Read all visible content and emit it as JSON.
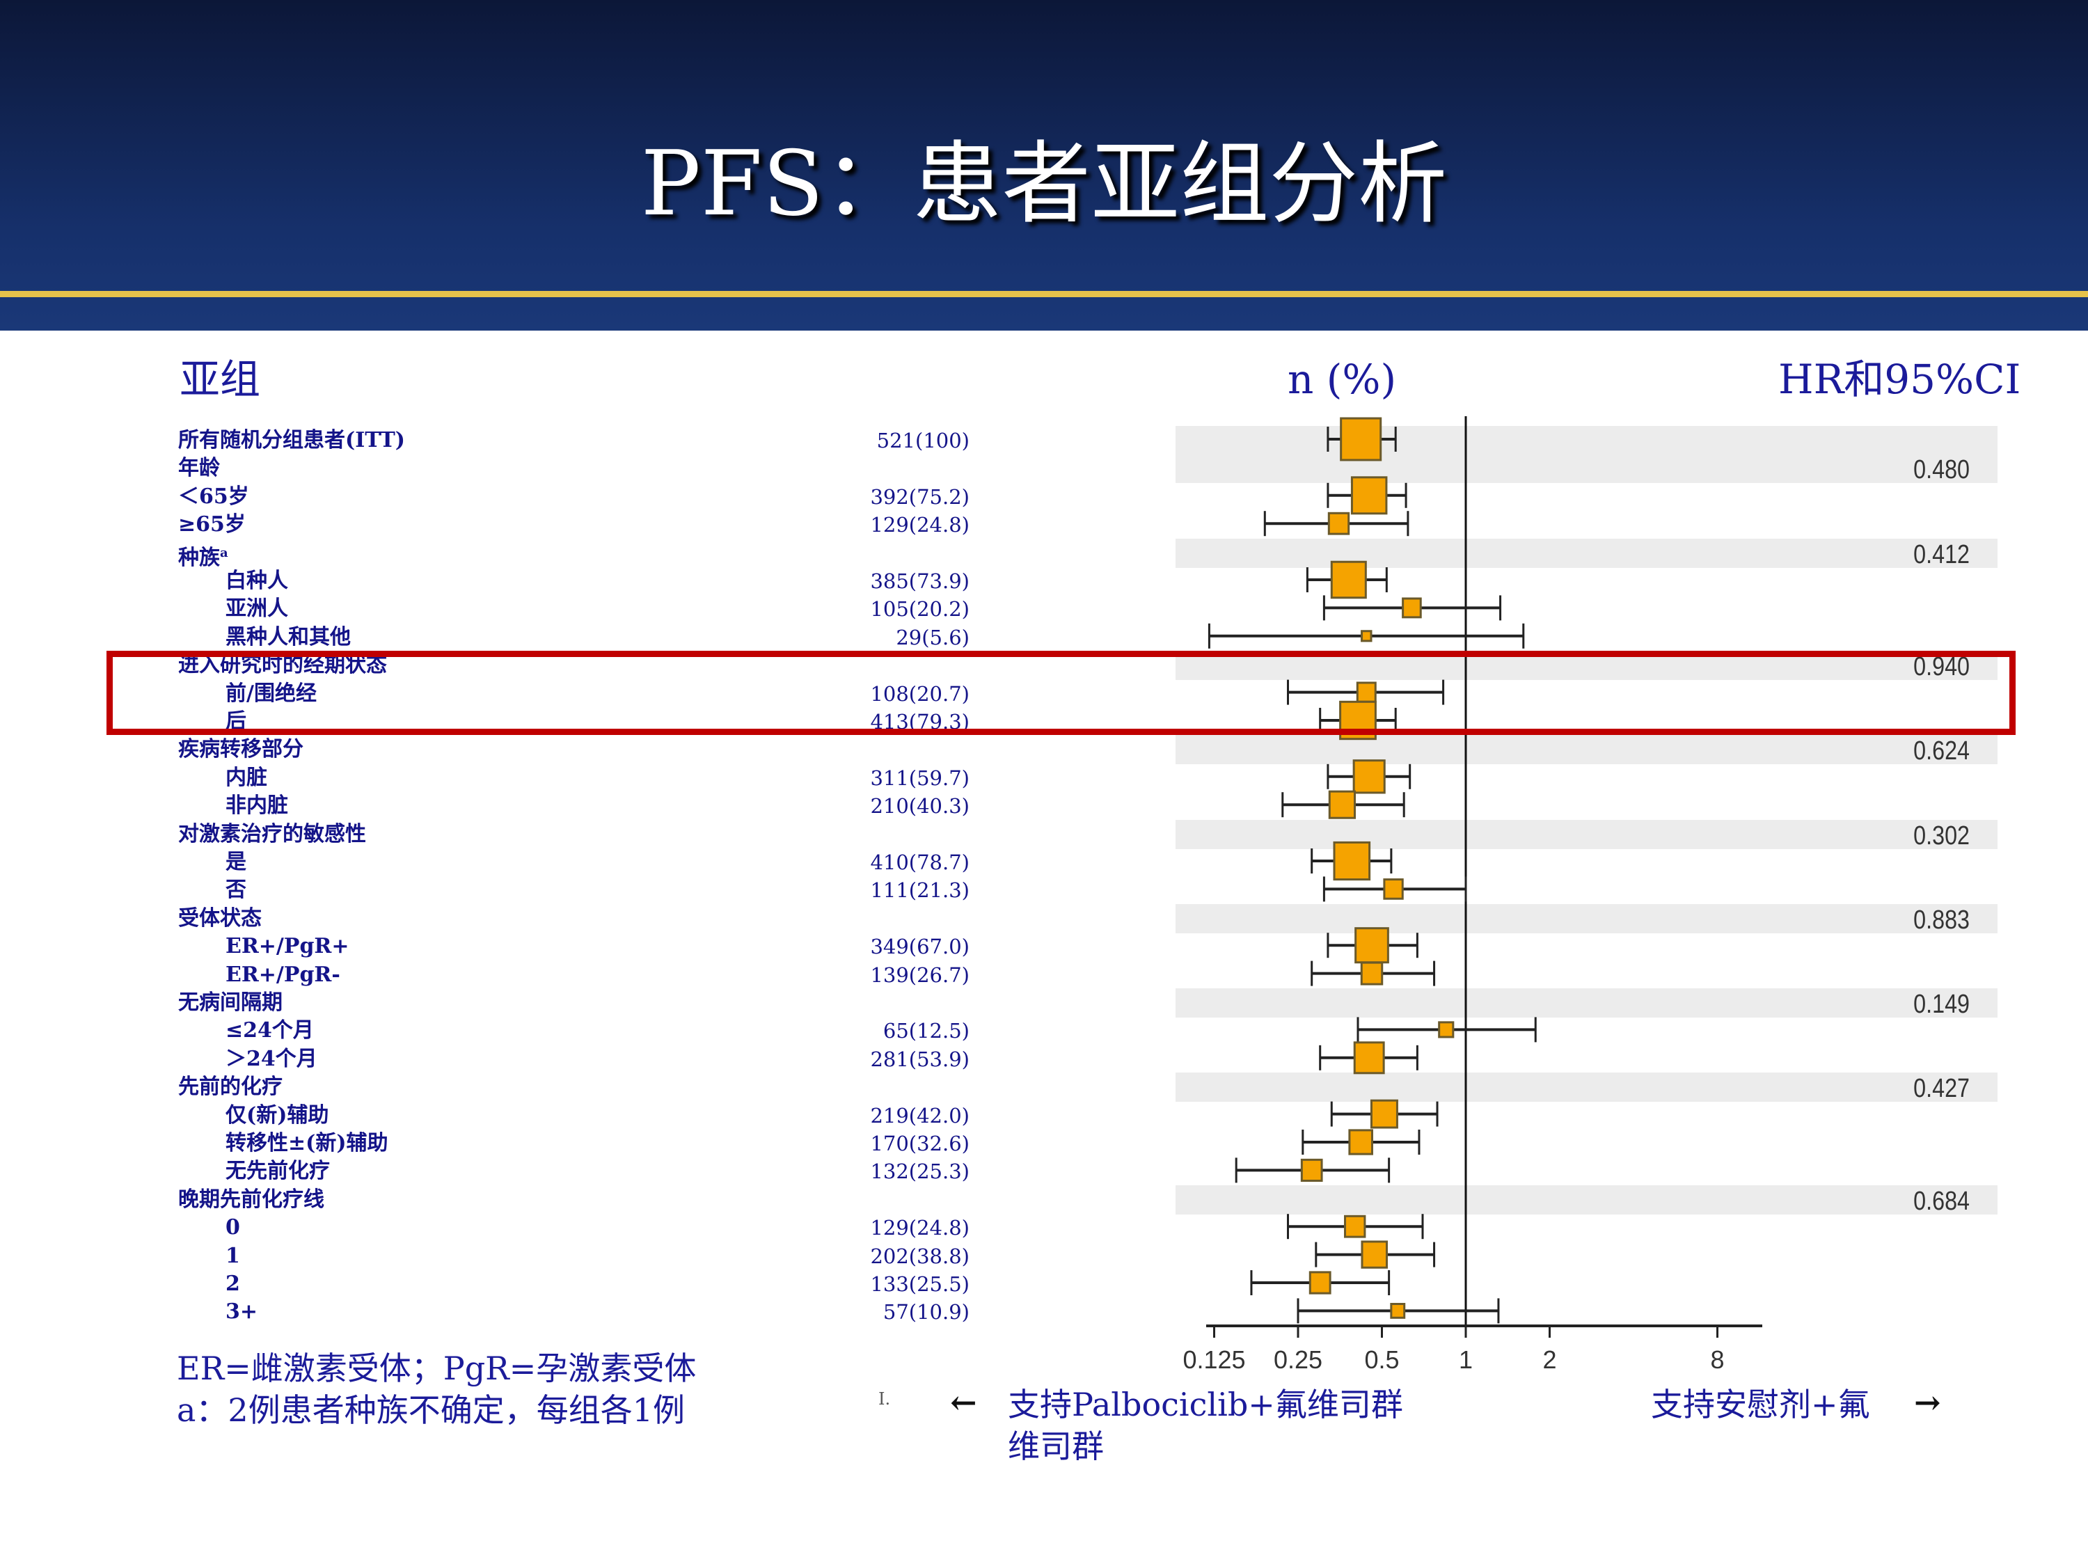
{
  "title": "PFS：患者亚组分析",
  "headers": {
    "subgroup": "亚组",
    "n": "n (%)",
    "hr": "HR和95%CI"
  },
  "colors": {
    "header_bg": "#16306b",
    "gold_line": "#e6c24a",
    "box_fill": "#f5a300",
    "highlight": "#c00000",
    "text": "#141489"
  },
  "rows": [
    {
      "label": "所有随机分组患者(ITT)",
      "indent": 0,
      "n": "521(100)"
    },
    {
      "label": "年龄",
      "indent": 0,
      "p": "0.480"
    },
    {
      "label": "＜65岁",
      "indent": 0,
      "n": "392(75.2)"
    },
    {
      "label": "≥65岁",
      "indent": 0,
      "n": "129(24.8)"
    },
    {
      "label": "种族",
      "sup": "a",
      "indent": 0,
      "p": "0.412"
    },
    {
      "label": "白种人",
      "indent": 1,
      "n": "385(73.9)"
    },
    {
      "label": "亚洲人",
      "indent": 1,
      "n": "105(20.2)"
    },
    {
      "label": "黑种人和其他",
      "indent": 1,
      "n": "29(5.6)"
    },
    {
      "label": "进入研究时的经期状态",
      "indent": 0,
      "p": "0.940"
    },
    {
      "label": "前/围绝经",
      "indent": 1,
      "n": "108(20.7)"
    },
    {
      "label": "后",
      "indent": 1,
      "n": "413(79.3)"
    },
    {
      "label": "疾病转移部分",
      "indent": 0,
      "p": "0.624"
    },
    {
      "label": "内脏",
      "indent": 1,
      "n": "311(59.7)"
    },
    {
      "label": "非内脏",
      "indent": 1,
      "n": "210(40.3)"
    },
    {
      "label": "对激素治疗的敏感性",
      "indent": 0,
      "p": "0.302"
    },
    {
      "label": "是",
      "indent": 1,
      "n": "410(78.7)"
    },
    {
      "label": "否",
      "indent": 1,
      "n": "111(21.3)"
    },
    {
      "label": "受体状态",
      "indent": 0,
      "p": "0.883"
    },
    {
      "label": "ER+/PgR+",
      "indent": 1,
      "n": "349(67.0)"
    },
    {
      "label": "ER+/PgR-",
      "indent": 1,
      "n": "139(26.7)"
    },
    {
      "label": "无病间隔期",
      "indent": 0,
      "p": "0.149"
    },
    {
      "label": "≤24个月",
      "indent": 1,
      "n": "65(12.5)"
    },
    {
      "label": "＞24个月",
      "indent": 1,
      "n": "281(53.9)"
    },
    {
      "label": "先前的化疗",
      "indent": 0,
      "p": "0.427"
    },
    {
      "label": "仅(新)辅助",
      "indent": 1,
      "n": "219(42.0)"
    },
    {
      "label": "转移性±(新)辅助",
      "indent": 1,
      "n": "170(32.6)"
    },
    {
      "label": "无先前化疗",
      "indent": 1,
      "n": "132(25.3)"
    },
    {
      "label": "晚期先前化疗线",
      "indent": 0,
      "p": "0.684"
    },
    {
      "label": "0",
      "indent": 1,
      "n": "129(24.8)"
    },
    {
      "label": "1",
      "indent": 1,
      "n": "202(38.8)"
    },
    {
      "label": "2",
      "indent": 1,
      "n": "133(25.5)"
    },
    {
      "label": "3+",
      "indent": 1,
      "n": "57(10.9)"
    }
  ],
  "chart_data": {
    "type": "forest",
    "xlabel": "HR",
    "xscale": "log2",
    "xlim": [
      0.11,
      12
    ],
    "xticks": [
      "0.125",
      "0.25",
      "0.5",
      "1",
      "2",
      "8"
    ],
    "reference_line": 1,
    "points": [
      {
        "row": 0,
        "n": 521,
        "hr": 0.42,
        "lo": 0.32,
        "hi": 0.56
      },
      {
        "row": 2,
        "n": 392,
        "hr": 0.45,
        "lo": 0.32,
        "hi": 0.61
      },
      {
        "row": 3,
        "n": 129,
        "hr": 0.35,
        "lo": 0.19,
        "hi": 0.62
      },
      {
        "row": 5,
        "n": 385,
        "hr": 0.38,
        "lo": 0.27,
        "hi": 0.52
      },
      {
        "row": 6,
        "n": 105,
        "hr": 0.64,
        "lo": 0.31,
        "hi": 1.33
      },
      {
        "row": 7,
        "n": 29,
        "hr": 0.44,
        "lo": 0.12,
        "hi": 1.61
      },
      {
        "row": 9,
        "n": 108,
        "hr": 0.44,
        "lo": 0.23,
        "hi": 0.83
      },
      {
        "row": 10,
        "n": 413,
        "hr": 0.41,
        "lo": 0.3,
        "hi": 0.56
      },
      {
        "row": 12,
        "n": 311,
        "hr": 0.45,
        "lo": 0.32,
        "hi": 0.63
      },
      {
        "row": 13,
        "n": 210,
        "hr": 0.36,
        "lo": 0.22,
        "hi": 0.6
      },
      {
        "row": 15,
        "n": 410,
        "hr": 0.39,
        "lo": 0.28,
        "hi": 0.54
      },
      {
        "row": 16,
        "n": 111,
        "hr": 0.55,
        "lo": 0.31,
        "hi": 1.0
      },
      {
        "row": 18,
        "n": 349,
        "hr": 0.46,
        "lo": 0.32,
        "hi": 0.67
      },
      {
        "row": 19,
        "n": 139,
        "hr": 0.46,
        "lo": 0.28,
        "hi": 0.77
      },
      {
        "row": 21,
        "n": 65,
        "hr": 0.85,
        "lo": 0.41,
        "hi": 1.78
      },
      {
        "row": 22,
        "n": 281,
        "hr": 0.45,
        "lo": 0.3,
        "hi": 0.67
      },
      {
        "row": 24,
        "n": 219,
        "hr": 0.51,
        "lo": 0.33,
        "hi": 0.79
      },
      {
        "row": 25,
        "n": 170,
        "hr": 0.42,
        "lo": 0.26,
        "hi": 0.68
      },
      {
        "row": 26,
        "n": 132,
        "hr": 0.28,
        "lo": 0.15,
        "hi": 0.53
      },
      {
        "row": 28,
        "n": 129,
        "hr": 0.4,
        "lo": 0.23,
        "hi": 0.7
      },
      {
        "row": 29,
        "n": 202,
        "hr": 0.47,
        "lo": 0.29,
        "hi": 0.77
      },
      {
        "row": 30,
        "n": 133,
        "hr": 0.3,
        "lo": 0.17,
        "hi": 0.53
      },
      {
        "row": 31,
        "n": 57,
        "hr": 0.57,
        "lo": 0.25,
        "hi": 1.31
      }
    ]
  },
  "footnotes": [
    "ER=雌激素受体；PgR=孕激素受体",
    "a：2例患者种族不确定，每组各1例"
  ],
  "direction": {
    "left_arrow": "←",
    "left_line1": "支持Palbociclib+氟维司群",
    "left_line2": "维司群",
    "right_text": "支持安慰剂+氟",
    "right_arrow": "→",
    "stray_mark": "I."
  }
}
